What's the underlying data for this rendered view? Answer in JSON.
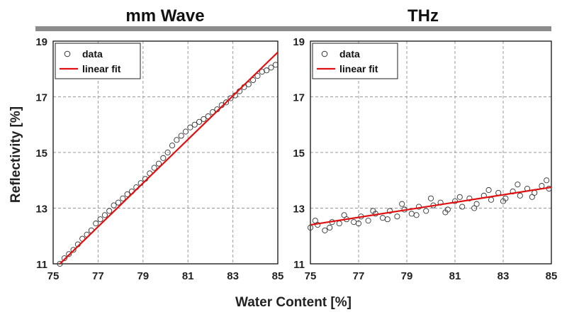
{
  "figure": {
    "shared_xlabel": "Water Content [%]",
    "shared_ylabel": "Reflectivity [%]"
  },
  "colors": {
    "fit_line": "#e01010",
    "markers": "#333333",
    "separator_bar": "#8c8c8c"
  },
  "chart_data": [
    {
      "type": "scatter",
      "title": "mm Wave",
      "xlabel": "Water Content [%]",
      "ylabel": "Reflectivity [%]",
      "xlim": [
        75,
        85
      ],
      "ylim": [
        11,
        19
      ],
      "xticks": [
        75,
        77,
        79,
        81,
        83,
        85
      ],
      "yticks": [
        11,
        13,
        15,
        17,
        19
      ],
      "grid": true,
      "legend_position": "top-left",
      "series": [
        {
          "name": "data",
          "kind": "markers",
          "x": [
            75.3,
            75.5,
            75.7,
            75.9,
            76.1,
            76.3,
            76.5,
            76.7,
            76.9,
            77.1,
            77.3,
            77.5,
            77.7,
            77.9,
            78.1,
            78.3,
            78.5,
            78.7,
            78.9,
            79.1,
            79.3,
            79.5,
            79.7,
            79.9,
            80.1,
            80.3,
            80.5,
            80.7,
            80.9,
            81.1,
            81.3,
            81.5,
            81.7,
            81.9,
            82.1,
            82.3,
            82.5,
            82.7,
            82.9,
            83.1,
            83.3,
            83.5,
            83.7,
            83.9,
            84.1,
            84.3,
            84.5,
            84.7,
            84.9
          ],
          "y": [
            11.0,
            11.2,
            11.35,
            11.5,
            11.7,
            11.9,
            12.05,
            12.2,
            12.45,
            12.6,
            12.75,
            12.9,
            13.1,
            13.2,
            13.35,
            13.5,
            13.6,
            13.75,
            13.9,
            14.05,
            14.25,
            14.45,
            14.6,
            14.8,
            15.0,
            15.25,
            15.45,
            15.6,
            15.75,
            15.9,
            16.0,
            16.1,
            16.2,
            16.3,
            16.45,
            16.55,
            16.7,
            16.8,
            16.95,
            17.05,
            17.2,
            17.35,
            17.45,
            17.6,
            17.75,
            17.9,
            17.95,
            18.05,
            18.15
          ]
        },
        {
          "name": "linear fit",
          "kind": "line",
          "x": [
            75.3,
            85
          ],
          "y": [
            11.0,
            18.6
          ]
        }
      ]
    },
    {
      "type": "scatter",
      "title": "THz",
      "xlabel": "Water Content [%]",
      "ylabel": "",
      "xlim": [
        75,
        85
      ],
      "ylim": [
        11,
        19
      ],
      "xticks": [
        75,
        77,
        79,
        81,
        83,
        85
      ],
      "yticks": [
        11,
        13,
        15,
        17,
        19
      ],
      "grid": true,
      "legend_position": "top-left",
      "series": [
        {
          "name": "data",
          "kind": "markers",
          "x": [
            75.0,
            75.3,
            75.6,
            75.9,
            76.2,
            76.5,
            76.8,
            77.1,
            77.4,
            77.7,
            78.0,
            78.3,
            78.6,
            78.9,
            79.2,
            79.5,
            79.8,
            80.1,
            80.4,
            80.7,
            81.0,
            81.3,
            81.6,
            81.9,
            82.2,
            82.5,
            82.8,
            83.1,
            83.4,
            83.7,
            84.0,
            84.3,
            84.6,
            84.9,
            75.2,
            75.8,
            76.4,
            77.0,
            77.6,
            78.2,
            78.8,
            79.4,
            80.0,
            80.6,
            81.2,
            81.8,
            82.4,
            83.0,
            83.6,
            84.2,
            84.8
          ],
          "y": [
            12.3,
            12.4,
            12.2,
            12.5,
            12.45,
            12.6,
            12.5,
            12.7,
            12.55,
            12.8,
            12.65,
            12.9,
            12.7,
            12.95,
            12.8,
            13.05,
            12.9,
            13.1,
            13.2,
            12.95,
            13.25,
            13.05,
            13.35,
            13.15,
            13.45,
            13.3,
            13.55,
            13.35,
            13.6,
            13.45,
            13.7,
            13.55,
            13.8,
            13.7,
            12.55,
            12.3,
            12.75,
            12.45,
            12.9,
            12.6,
            13.15,
            12.75,
            13.35,
            12.85,
            13.4,
            13.0,
            13.65,
            13.25,
            13.85,
            13.4,
            14.0
          ]
        },
        {
          "name": "linear fit",
          "kind": "line",
          "x": [
            75,
            85
          ],
          "y": [
            12.4,
            13.75
          ]
        }
      ]
    }
  ]
}
